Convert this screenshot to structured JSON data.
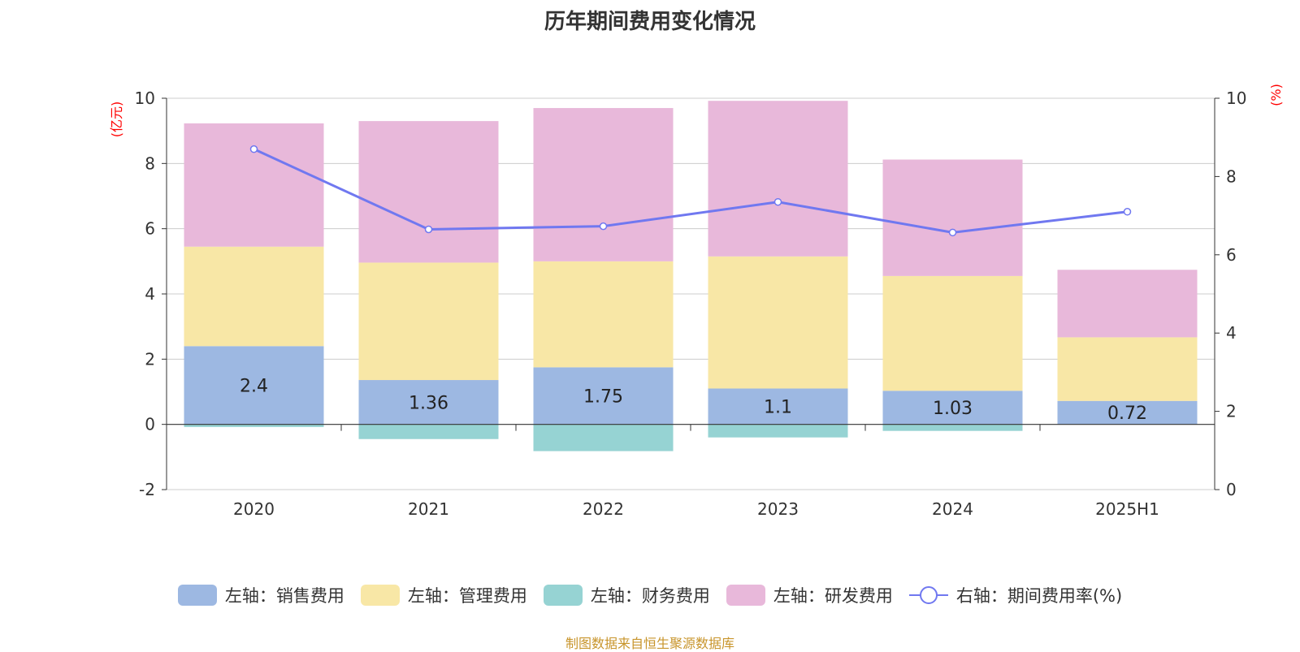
{
  "chart_data": {
    "type": "bar",
    "title": "历年期间费用变化情况",
    "source": "制图数据来自恒生聚源数据库",
    "categories": [
      "2020",
      "2021",
      "2022",
      "2023",
      "2024",
      "2025H1"
    ],
    "left_axis": {
      "unit": "(亿元)",
      "min": -2,
      "max": 10,
      "ticks": [
        "-2",
        "0",
        "2",
        "4",
        "6",
        "8",
        "10"
      ]
    },
    "right_axis": {
      "unit": "(%)",
      "min": 0,
      "max": 10,
      "ticks": [
        "0",
        "2",
        "4",
        "6",
        "8",
        "10"
      ]
    },
    "grid": true,
    "legend_position": "bottom",
    "series": [
      {
        "name": "左轴：销售费用",
        "type": "bar",
        "axis": "left",
        "color": "#9db8e2",
        "values": [
          2.4,
          1.36,
          1.75,
          1.1,
          1.03,
          0.72
        ],
        "labels": [
          "2.4",
          "1.36",
          "1.75",
          "1.1",
          "1.03",
          "0.72"
        ]
      },
      {
        "name": "左轴：管理费用",
        "type": "bar",
        "axis": "left",
        "color": "#f8e7a6",
        "values": [
          3.05,
          3.6,
          3.25,
          4.05,
          3.52,
          1.95
        ]
      },
      {
        "name": "左轴：财务费用",
        "type": "bar",
        "axis": "left",
        "color": "#96d3d3",
        "values": [
          -0.08,
          -0.45,
          -0.82,
          -0.4,
          -0.2,
          0
        ]
      },
      {
        "name": "左轴：研发费用",
        "type": "bar",
        "axis": "left",
        "color": "#e8b8da",
        "values": [
          3.78,
          4.34,
          4.7,
          4.77,
          3.57,
          2.07
        ]
      },
      {
        "name": "右轴：期间费用率(%)",
        "type": "line",
        "axis": "right",
        "color": "#7078f0",
        "values": [
          8.7,
          6.65,
          6.73,
          7.35,
          6.57,
          7.1
        ]
      }
    ]
  }
}
